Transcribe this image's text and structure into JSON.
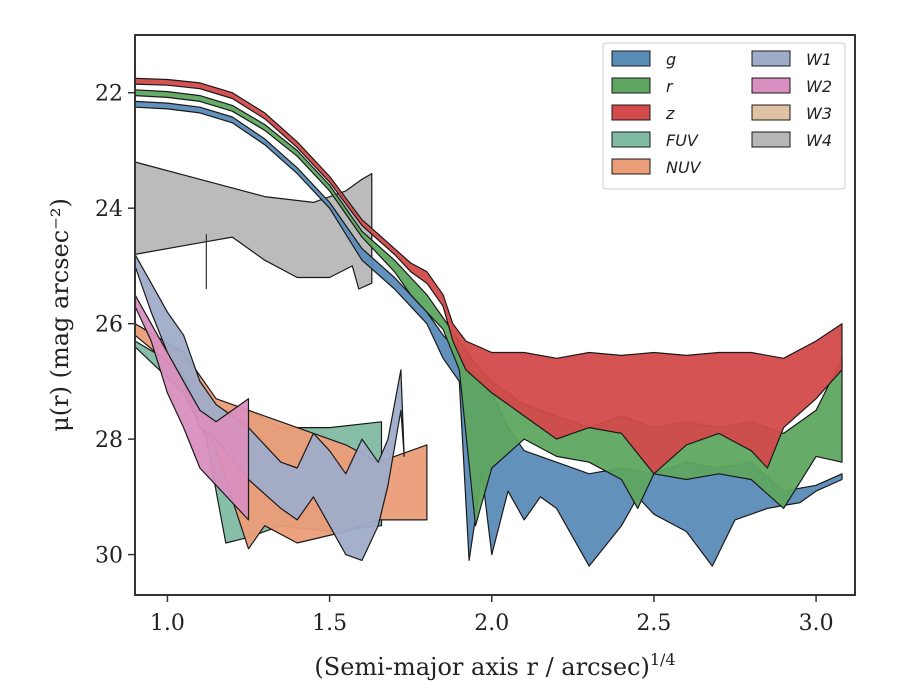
{
  "chart_data": {
    "type": "area",
    "title": "",
    "xlabel": "(Semi-major axis r / arcsec)",
    "xlabel_super": "1/4",
    "ylabel": "μ(r) (mag arcsec⁻²)",
    "xlim": [
      0.9,
      3.12
    ],
    "ylim": [
      30.7,
      21.0
    ],
    "y_inverted": true,
    "grid": false,
    "legend_position": "top-right",
    "x_ticks": [
      1.0,
      1.5,
      2.0,
      2.5,
      3.0
    ],
    "x_tick_labels": [
      "1.0",
      "1.5",
      "2.0",
      "2.5",
      "3.0"
    ],
    "y_ticks": [
      22,
      24,
      26,
      28,
      30
    ],
    "y_tick_labels": [
      "22",
      "24",
      "26",
      "28",
      "30"
    ],
    "series": [
      {
        "name": "FUV",
        "color": "#7fbaa3",
        "upper": [
          [
            0.9,
            26.3
          ],
          [
            1.05,
            26.8
          ],
          [
            1.12,
            27.5
          ],
          [
            1.25,
            27.5
          ],
          [
            1.35,
            27.8
          ],
          [
            1.5,
            27.8
          ],
          [
            1.66,
            27.7
          ]
        ],
        "lower": [
          [
            0.9,
            26.4
          ],
          [
            1.05,
            27.2
          ],
          [
            1.12,
            28.0
          ],
          [
            1.18,
            29.8
          ],
          [
            1.25,
            29.7
          ],
          [
            1.35,
            29.5
          ],
          [
            1.5,
            29.6
          ],
          [
            1.66,
            29.5
          ]
        ]
      },
      {
        "name": "NUV",
        "color": "#eb9d77",
        "upper": [
          [
            0.9,
            26.0
          ],
          [
            1.05,
            26.5
          ],
          [
            1.15,
            27.3
          ],
          [
            1.25,
            27.5
          ],
          [
            1.4,
            27.8
          ],
          [
            1.55,
            28.1
          ],
          [
            1.65,
            28.4
          ],
          [
            1.8,
            28.1
          ]
        ],
        "lower": [
          [
            0.9,
            26.2
          ],
          [
            1.05,
            26.9
          ],
          [
            1.15,
            28.2
          ],
          [
            1.25,
            29.9
          ],
          [
            1.3,
            29.5
          ],
          [
            1.4,
            29.8
          ],
          [
            1.55,
            29.6
          ],
          [
            1.65,
            29.4
          ],
          [
            1.8,
            29.4
          ]
        ]
      },
      {
        "name": "W1",
        "color": "#9facc9",
        "upper": [
          [
            0.9,
            24.8
          ],
          [
            0.95,
            25.3
          ],
          [
            1.0,
            25.8
          ],
          [
            1.05,
            26.2
          ],
          [
            1.1,
            27.0
          ],
          [
            1.15,
            27.4
          ],
          [
            1.25,
            27.8
          ],
          [
            1.35,
            28.4
          ],
          [
            1.4,
            28.5
          ],
          [
            1.45,
            27.9
          ],
          [
            1.5,
            28.2
          ],
          [
            1.55,
            28.6
          ],
          [
            1.6,
            28.0
          ],
          [
            1.65,
            28.4
          ],
          [
            1.68,
            28.0
          ],
          [
            1.72,
            26.8
          ],
          [
            1.73,
            28.3
          ]
        ],
        "lower": [
          [
            0.9,
            25.0
          ],
          [
            0.95,
            25.8
          ],
          [
            1.0,
            26.5
          ],
          [
            1.05,
            27.0
          ],
          [
            1.1,
            27.8
          ],
          [
            1.15,
            28.0
          ],
          [
            1.25,
            28.7
          ],
          [
            1.35,
            29.2
          ],
          [
            1.4,
            29.4
          ],
          [
            1.45,
            29.0
          ],
          [
            1.5,
            29.5
          ],
          [
            1.55,
            30.0
          ],
          [
            1.6,
            30.1
          ],
          [
            1.65,
            29.5
          ],
          [
            1.68,
            28.8
          ],
          [
            1.72,
            27.5
          ]
        ]
      },
      {
        "name": "W2",
        "color": "#d98fbf",
        "upper": [
          [
            0.9,
            25.5
          ],
          [
            0.95,
            26.0
          ],
          [
            1.0,
            26.5
          ],
          [
            1.05,
            27.0
          ],
          [
            1.1,
            27.5
          ],
          [
            1.15,
            27.7
          ],
          [
            1.25,
            27.3
          ]
        ],
        "lower": [
          [
            0.9,
            25.7
          ],
          [
            0.95,
            26.3
          ],
          [
            1.0,
            27.2
          ],
          [
            1.05,
            27.8
          ],
          [
            1.1,
            28.5
          ],
          [
            1.15,
            28.8
          ],
          [
            1.25,
            29.4
          ]
        ]
      },
      {
        "name": "W3",
        "color": "#e0c1a2",
        "upper": [],
        "lower": []
      },
      {
        "name": "W4",
        "color": "#b7b7b7",
        "upper": [
          [
            0.9,
            23.2
          ],
          [
            1.1,
            23.5
          ],
          [
            1.3,
            23.8
          ],
          [
            1.45,
            23.9
          ],
          [
            1.55,
            23.7
          ],
          [
            1.6,
            23.5
          ],
          [
            1.63,
            23.4
          ]
        ],
        "lower": [
          [
            0.9,
            24.8
          ],
          [
            1.1,
            24.6
          ],
          [
            1.2,
            24.5
          ],
          [
            1.3,
            24.9
          ],
          [
            1.4,
            25.2
          ],
          [
            1.5,
            25.2
          ],
          [
            1.57,
            25.0
          ],
          [
            1.59,
            25.4
          ],
          [
            1.63,
            25.3
          ]
        ]
      },
      {
        "name": "g",
        "color": "#5a8cb8",
        "upper": [
          [
            0.9,
            22.15
          ],
          [
            1.0,
            22.18
          ],
          [
            1.1,
            22.25
          ],
          [
            1.2,
            22.42
          ],
          [
            1.3,
            22.8
          ],
          [
            1.4,
            23.3
          ],
          [
            1.5,
            23.9
          ],
          [
            1.6,
            24.7
          ],
          [
            1.7,
            25.2
          ],
          [
            1.75,
            25.5
          ],
          [
            1.8,
            25.8
          ],
          [
            1.85,
            26.2
          ],
          [
            1.9,
            26.5
          ],
          [
            1.95,
            26.9
          ],
          [
            2.0,
            27.2
          ],
          [
            2.05,
            27.8
          ],
          [
            2.1,
            28.2
          ],
          [
            2.2,
            28.4
          ],
          [
            2.3,
            28.6
          ],
          [
            2.4,
            28.5
          ],
          [
            2.5,
            28.6
          ],
          [
            2.6,
            28.4
          ],
          [
            2.7,
            28.5
          ],
          [
            2.8,
            28.4
          ],
          [
            2.9,
            28.9
          ],
          [
            3.0,
            28.8
          ],
          [
            3.08,
            28.6
          ]
        ],
        "lower": [
          [
            0.9,
            22.25
          ],
          [
            1.0,
            22.28
          ],
          [
            1.1,
            22.35
          ],
          [
            1.2,
            22.52
          ],
          [
            1.3,
            22.9
          ],
          [
            1.4,
            23.4
          ],
          [
            1.5,
            24.0
          ],
          [
            1.6,
            24.9
          ],
          [
            1.7,
            25.4
          ],
          [
            1.75,
            25.7
          ],
          [
            1.8,
            26.0
          ],
          [
            1.85,
            26.6
          ],
          [
            1.9,
            27.0
          ],
          [
            1.93,
            30.1
          ],
          [
            1.97,
            28.6
          ],
          [
            2.0,
            30.0
          ],
          [
            2.05,
            28.9
          ],
          [
            2.1,
            29.4
          ],
          [
            2.15,
            29.0
          ],
          [
            2.2,
            29.2
          ],
          [
            2.3,
            30.2
          ],
          [
            2.4,
            29.5
          ],
          [
            2.45,
            29.0
          ],
          [
            2.5,
            29.3
          ],
          [
            2.6,
            29.6
          ],
          [
            2.68,
            30.2
          ],
          [
            2.75,
            29.4
          ],
          [
            2.85,
            29.2
          ],
          [
            2.95,
            29.1
          ],
          [
            3.0,
            28.9
          ],
          [
            3.08,
            28.7
          ]
        ]
      },
      {
        "name": "r",
        "color": "#5ea660",
        "upper": [
          [
            0.9,
            21.95
          ],
          [
            1.0,
            21.98
          ],
          [
            1.1,
            22.05
          ],
          [
            1.2,
            22.22
          ],
          [
            1.3,
            22.55
          ],
          [
            1.4,
            23.0
          ],
          [
            1.5,
            23.6
          ],
          [
            1.6,
            24.4
          ],
          [
            1.7,
            24.9
          ],
          [
            1.75,
            25.2
          ],
          [
            1.8,
            25.5
          ],
          [
            1.85,
            25.9
          ],
          [
            1.9,
            26.3
          ],
          [
            1.95,
            26.7
          ],
          [
            2.0,
            27.0
          ],
          [
            2.1,
            27.4
          ],
          [
            2.2,
            27.6
          ],
          [
            2.3,
            27.8
          ],
          [
            2.4,
            27.6
          ],
          [
            2.5,
            27.8
          ],
          [
            2.6,
            27.7
          ],
          [
            2.7,
            27.8
          ],
          [
            2.8,
            27.7
          ],
          [
            2.9,
            27.9
          ],
          [
            3.0,
            27.5
          ],
          [
            3.08,
            26.6
          ]
        ],
        "lower": [
          [
            0.9,
            22.05
          ],
          [
            1.0,
            22.08
          ],
          [
            1.1,
            22.15
          ],
          [
            1.2,
            22.32
          ],
          [
            1.3,
            22.65
          ],
          [
            1.4,
            23.1
          ],
          [
            1.5,
            23.7
          ],
          [
            1.6,
            24.5
          ],
          [
            1.7,
            25.1
          ],
          [
            1.75,
            25.5
          ],
          [
            1.8,
            25.8
          ],
          [
            1.85,
            26.1
          ],
          [
            1.9,
            26.8
          ],
          [
            1.95,
            29.5
          ],
          [
            2.0,
            28.5
          ],
          [
            2.1,
            28.0
          ],
          [
            2.2,
            28.3
          ],
          [
            2.3,
            28.4
          ],
          [
            2.4,
            28.7
          ],
          [
            2.45,
            29.2
          ],
          [
            2.5,
            28.6
          ],
          [
            2.6,
            28.7
          ],
          [
            2.7,
            28.6
          ],
          [
            2.8,
            28.7
          ],
          [
            2.9,
            29.2
          ],
          [
            3.0,
            28.3
          ],
          [
            3.08,
            28.4
          ]
        ]
      },
      {
        "name": "z",
        "color": "#d34a4a",
        "upper": [
          [
            0.9,
            21.75
          ],
          [
            1.0,
            21.77
          ],
          [
            1.1,
            21.83
          ],
          [
            1.2,
            22.0
          ],
          [
            1.3,
            22.35
          ],
          [
            1.4,
            22.85
          ],
          [
            1.5,
            23.45
          ],
          [
            1.6,
            24.2
          ],
          [
            1.7,
            24.7
          ],
          [
            1.75,
            24.95
          ],
          [
            1.8,
            25.1
          ],
          [
            1.85,
            25.5
          ],
          [
            1.88,
            26.0
          ],
          [
            1.92,
            26.3
          ],
          [
            2.0,
            26.5
          ],
          [
            2.1,
            26.5
          ],
          [
            2.2,
            26.6
          ],
          [
            2.3,
            26.5
          ],
          [
            2.4,
            26.55
          ],
          [
            2.5,
            26.5
          ],
          [
            2.6,
            26.55
          ],
          [
            2.7,
            26.5
          ],
          [
            2.8,
            26.5
          ],
          [
            2.9,
            26.6
          ],
          [
            3.0,
            26.3
          ],
          [
            3.08,
            26.0
          ]
        ],
        "lower": [
          [
            0.9,
            21.85
          ],
          [
            1.0,
            21.87
          ],
          [
            1.1,
            21.93
          ],
          [
            1.2,
            22.1
          ],
          [
            1.3,
            22.45
          ],
          [
            1.4,
            22.95
          ],
          [
            1.5,
            23.55
          ],
          [
            1.6,
            24.3
          ],
          [
            1.7,
            24.8
          ],
          [
            1.75,
            25.1
          ],
          [
            1.8,
            25.3
          ],
          [
            1.85,
            25.7
          ],
          [
            1.88,
            26.3
          ],
          [
            1.92,
            26.8
          ],
          [
            2.0,
            27.2
          ],
          [
            2.1,
            27.6
          ],
          [
            2.2,
            28.0
          ],
          [
            2.3,
            27.8
          ],
          [
            2.4,
            27.9
          ],
          [
            2.5,
            28.6
          ],
          [
            2.6,
            28.1
          ],
          [
            2.7,
            27.9
          ],
          [
            2.8,
            28.2
          ],
          [
            2.85,
            28.5
          ],
          [
            2.9,
            27.8
          ],
          [
            3.0,
            27.3
          ],
          [
            3.08,
            26.8
          ]
        ]
      }
    ],
    "legend_left": [
      "g",
      "r",
      "z",
      "FUV",
      "NUV"
    ],
    "legend_right": [
      "W1",
      "W2",
      "W3",
      "W4"
    ],
    "w4_errorbar": {
      "x": 1.12,
      "y_top": 24.45,
      "y_bottom": 25.4
    }
  }
}
